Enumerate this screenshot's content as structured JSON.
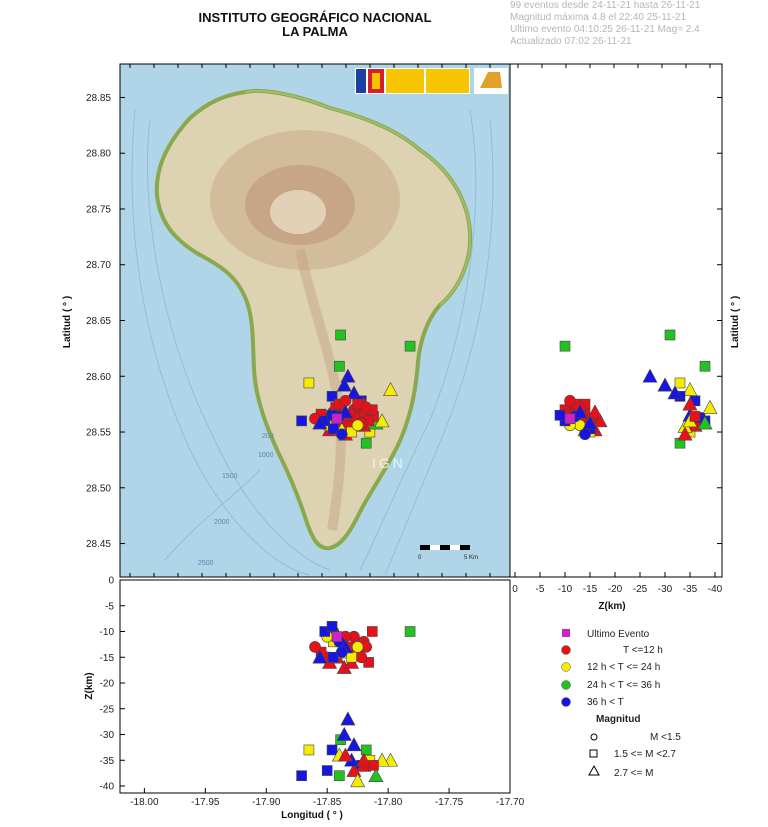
{
  "header": {
    "title": "INSTITUTO GEOGRÁFICO NACIONAL",
    "subtitle": "LA PALMA"
  },
  "info": {
    "line1": "99 eventos desde 24-11-21 hasta 26-11-21",
    "line2": "Magnitud máxima 4.8 el 22:40 25-11-21",
    "line3": "Ultimo evento   04:10:25 26-11-21  Mag= 2.4",
    "line4": "Actualizado   07:02  26-11-21"
  },
  "map": {
    "watermark": "IGN",
    "scale_left": "0",
    "scale_right": "5 Km",
    "contours": [
      "200",
      "1000",
      "1500",
      "2000",
      "2500"
    ]
  },
  "colors": {
    "ocean": "#b4d8ea",
    "land": "#ddd2b2",
    "coast": "#8aa84c",
    "red": "#e8101a",
    "yellow": "#f5ec00",
    "green": "#22c222",
    "blue": "#1616e0",
    "magenta": "#cc22cc"
  },
  "chart_data": {
    "type": "scatter",
    "map_panel": {
      "ylabel": "Latitud ( ° )",
      "ylim": [
        28.42,
        28.88
      ],
      "xlim": [
        -18.02,
        -17.7
      ],
      "yticks": [
        "28.85",
        "28.80",
        "28.75",
        "28.70",
        "28.65",
        "28.60",
        "28.55",
        "28.50",
        "28.45"
      ]
    },
    "depth_lat_panel": {
      "xlabel": "Z(km)",
      "ylabel": "Latitud ( ° )",
      "xticks": [
        "0",
        "-5",
        "-10",
        "-15",
        "-20",
        "-25",
        "-30",
        "-35",
        "-40"
      ]
    },
    "lon_depth_panel": {
      "xlabel": "Longitud ( ° )",
      "ylabel": "Z(km)",
      "xticks": [
        "-18.00",
        "-17.95",
        "-17.90",
        "-17.85",
        "-17.80",
        "-17.75",
        "-17.70"
      ],
      "yticks": [
        "0",
        "-5",
        "-10",
        "-15",
        "-20",
        "-25",
        "-30",
        "-35",
        "-40"
      ]
    },
    "legend": {
      "time_title": "",
      "entries": [
        {
          "label": "Ultimo Evento",
          "color": "magenta",
          "shape": "square"
        },
        {
          "label": "T <=12 h",
          "color": "red",
          "shape": "circle"
        },
        {
          "label": "12 h  < T <= 24 h",
          "color": "yellow",
          "shape": "circle"
        },
        {
          "label": "24 h  < T <= 36 h",
          "color": "green",
          "shape": "circle"
        },
        {
          "label": "36 h <  T",
          "color": "blue",
          "shape": "circle"
        }
      ],
      "magnitude_title": "Magnitud",
      "magnitudes": [
        {
          "label": "M <1.5",
          "shape": "circle"
        },
        {
          "label": "1.5 <= M <2.7",
          "shape": "square"
        },
        {
          "label": "2.7 <= M",
          "shape": "triangle"
        }
      ]
    },
    "events": [
      {
        "lon": -17.865,
        "lat": 28.594,
        "depth": -33,
        "group": "yellow",
        "mag": "square"
      },
      {
        "lon": -17.782,
        "lat": 28.627,
        "depth": -10,
        "group": "green",
        "mag": "square"
      },
      {
        "lon": -17.839,
        "lat": 28.637,
        "depth": -31,
        "group": "green",
        "mag": "square"
      },
      {
        "lon": -17.84,
        "lat": 28.609,
        "depth": -38,
        "group": "green",
        "mag": "square"
      },
      {
        "lon": -17.798,
        "lat": 28.588,
        "depth": -35,
        "group": "yellow",
        "mag": "triangle"
      },
      {
        "lon": -17.833,
        "lat": 28.6,
        "depth": -27,
        "group": "blue",
        "mag": "triangle"
      },
      {
        "lon": -17.836,
        "lat": 28.592,
        "depth": -30,
        "group": "blue",
        "mag": "triangle"
      },
      {
        "lon": -17.846,
        "lat": 28.582,
        "depth": -33,
        "group": "blue",
        "mag": "square"
      },
      {
        "lon": -17.828,
        "lat": 28.585,
        "depth": -32,
        "group": "blue",
        "mag": "triangle"
      },
      {
        "lon": -17.822,
        "lat": 28.578,
        "depth": -36,
        "group": "blue",
        "mag": "square"
      },
      {
        "lon": -17.815,
        "lat": 28.55,
        "depth": -35,
        "group": "yellow",
        "mag": "square"
      },
      {
        "lon": -17.818,
        "lat": 28.54,
        "depth": -33,
        "group": "green",
        "mag": "square"
      },
      {
        "lon": -17.82,
        "lat": 28.556,
        "depth": -36,
        "group": "red",
        "mag": "triangle"
      },
      {
        "lon": -17.84,
        "lat": 28.555,
        "depth": -34,
        "group": "yellow",
        "mag": "triangle"
      },
      {
        "lon": -17.828,
        "lat": 28.56,
        "depth": -37,
        "group": "red",
        "mag": "triangle"
      },
      {
        "lon": -17.83,
        "lat": 28.565,
        "depth": -35,
        "group": "blue",
        "mag": "triangle"
      },
      {
        "lon": -17.85,
        "lat": 28.563,
        "depth": -37,
        "group": "blue",
        "mag": "square"
      },
      {
        "lon": -17.871,
        "lat": 28.56,
        "depth": -38,
        "group": "blue",
        "mag": "square"
      },
      {
        "lon": -17.825,
        "lat": 28.572,
        "depth": -39,
        "group": "yellow",
        "mag": "triangle"
      },
      {
        "lon": -17.81,
        "lat": 28.558,
        "depth": -38,
        "group": "green",
        "mag": "triangle"
      },
      {
        "lon": -17.805,
        "lat": 28.56,
        "depth": -35,
        "group": "yellow",
        "mag": "triangle"
      },
      {
        "lon": -17.812,
        "lat": 28.564,
        "depth": -36,
        "group": "red",
        "mag": "square"
      },
      {
        "lon": -17.82,
        "lat": 28.575,
        "depth": -35,
        "group": "red",
        "mag": "triangle"
      },
      {
        "lon": -17.835,
        "lat": 28.548,
        "depth": -34,
        "group": "red",
        "mag": "triangle"
      },
      {
        "lon": -17.845,
        "lat": 28.568,
        "depth": -10,
        "group": "red",
        "mag": "circle"
      },
      {
        "lon": -17.843,
        "lat": 28.572,
        "depth": -11,
        "group": "red",
        "mag": "square"
      },
      {
        "lon": -17.838,
        "lat": 28.565,
        "depth": -12,
        "group": "red",
        "mag": "circle"
      },
      {
        "lon": -17.832,
        "lat": 28.562,
        "depth": -13,
        "group": "red",
        "mag": "square"
      },
      {
        "lon": -17.828,
        "lat": 28.57,
        "depth": -11,
        "group": "red",
        "mag": "circle"
      },
      {
        "lon": -17.825,
        "lat": 28.575,
        "depth": -14,
        "group": "red",
        "mag": "square"
      },
      {
        "lon": -17.82,
        "lat": 28.566,
        "depth": -12,
        "group": "red",
        "mag": "circle"
      },
      {
        "lon": -17.816,
        "lat": 28.56,
        "depth": -16,
        "group": "red",
        "mag": "square"
      },
      {
        "lon": -17.813,
        "lat": 28.57,
        "depth": -10,
        "group": "red",
        "mag": "square"
      },
      {
        "lon": -17.85,
        "lat": 28.558,
        "depth": -15,
        "group": "red",
        "mag": "circle"
      },
      {
        "lon": -17.855,
        "lat": 28.566,
        "depth": -14,
        "group": "red",
        "mag": "square"
      },
      {
        "lon": -17.86,
        "lat": 28.562,
        "depth": -13,
        "group": "red",
        "mag": "circle"
      },
      {
        "lon": -17.848,
        "lat": 28.552,
        "depth": -16,
        "group": "red",
        "mag": "triangle"
      },
      {
        "lon": -17.842,
        "lat": 28.555,
        "depth": -15,
        "group": "red",
        "mag": "triangle"
      },
      {
        "lon": -17.836,
        "lat": 28.56,
        "depth": -17,
        "group": "red",
        "mag": "triangle"
      },
      {
        "lon": -17.83,
        "lat": 28.568,
        "depth": -16,
        "group": "red",
        "mag": "triangle"
      },
      {
        "lon": -17.826,
        "lat": 28.563,
        "depth": -14,
        "group": "red",
        "mag": "triangle"
      },
      {
        "lon": -17.822,
        "lat": 28.558,
        "depth": -15,
        "group": "red",
        "mag": "circle"
      },
      {
        "lon": -17.818,
        "lat": 28.572,
        "depth": -13,
        "group": "red",
        "mag": "circle"
      },
      {
        "lon": -17.84,
        "lat": 28.575,
        "depth": -12,
        "group": "red",
        "mag": "square"
      },
      {
        "lon": -17.835,
        "lat": 28.578,
        "depth": -11,
        "group": "red",
        "mag": "circle"
      },
      {
        "lon": -17.832,
        "lat": 28.555,
        "depth": -14,
        "group": "red",
        "mag": "square"
      },
      {
        "lon": -17.845,
        "lat": 28.56,
        "depth": -12,
        "group": "yellow",
        "mag": "square"
      },
      {
        "lon": -17.838,
        "lat": 28.552,
        "depth": -14,
        "group": "yellow",
        "mag": "triangle"
      },
      {
        "lon": -17.83,
        "lat": 28.55,
        "depth": -15,
        "group": "yellow",
        "mag": "square"
      },
      {
        "lon": -17.825,
        "lat": 28.556,
        "depth": -13,
        "group": "yellow",
        "mag": "circle"
      },
      {
        "lon": -17.85,
        "lat": 28.556,
        "depth": -11,
        "group": "yellow",
        "mag": "circle"
      },
      {
        "lon": -17.845,
        "lat": 28.553,
        "depth": -15,
        "group": "blue",
        "mag": "square"
      },
      {
        "lon": -17.852,
        "lat": 28.56,
        "depth": -10,
        "group": "blue",
        "mag": "square"
      },
      {
        "lon": -17.84,
        "lat": 28.564,
        "depth": -12,
        "group": "blue",
        "mag": "circle"
      },
      {
        "lon": -17.835,
        "lat": 28.568,
        "depth": -13,
        "group": "blue",
        "mag": "triangle"
      },
      {
        "lon": -17.856,
        "lat": 28.558,
        "depth": -15,
        "group": "blue",
        "mag": "triangle"
      },
      {
        "lon": -17.838,
        "lat": 28.548,
        "depth": -14,
        "group": "blue",
        "mag": "circle"
      },
      {
        "lon": -17.846,
        "lat": 28.565,
        "depth": -9,
        "group": "blue",
        "mag": "square"
      },
      {
        "lon": -17.842,
        "lat": 28.562,
        "depth": -11,
        "group": "magenta",
        "mag": "square"
      }
    ]
  }
}
